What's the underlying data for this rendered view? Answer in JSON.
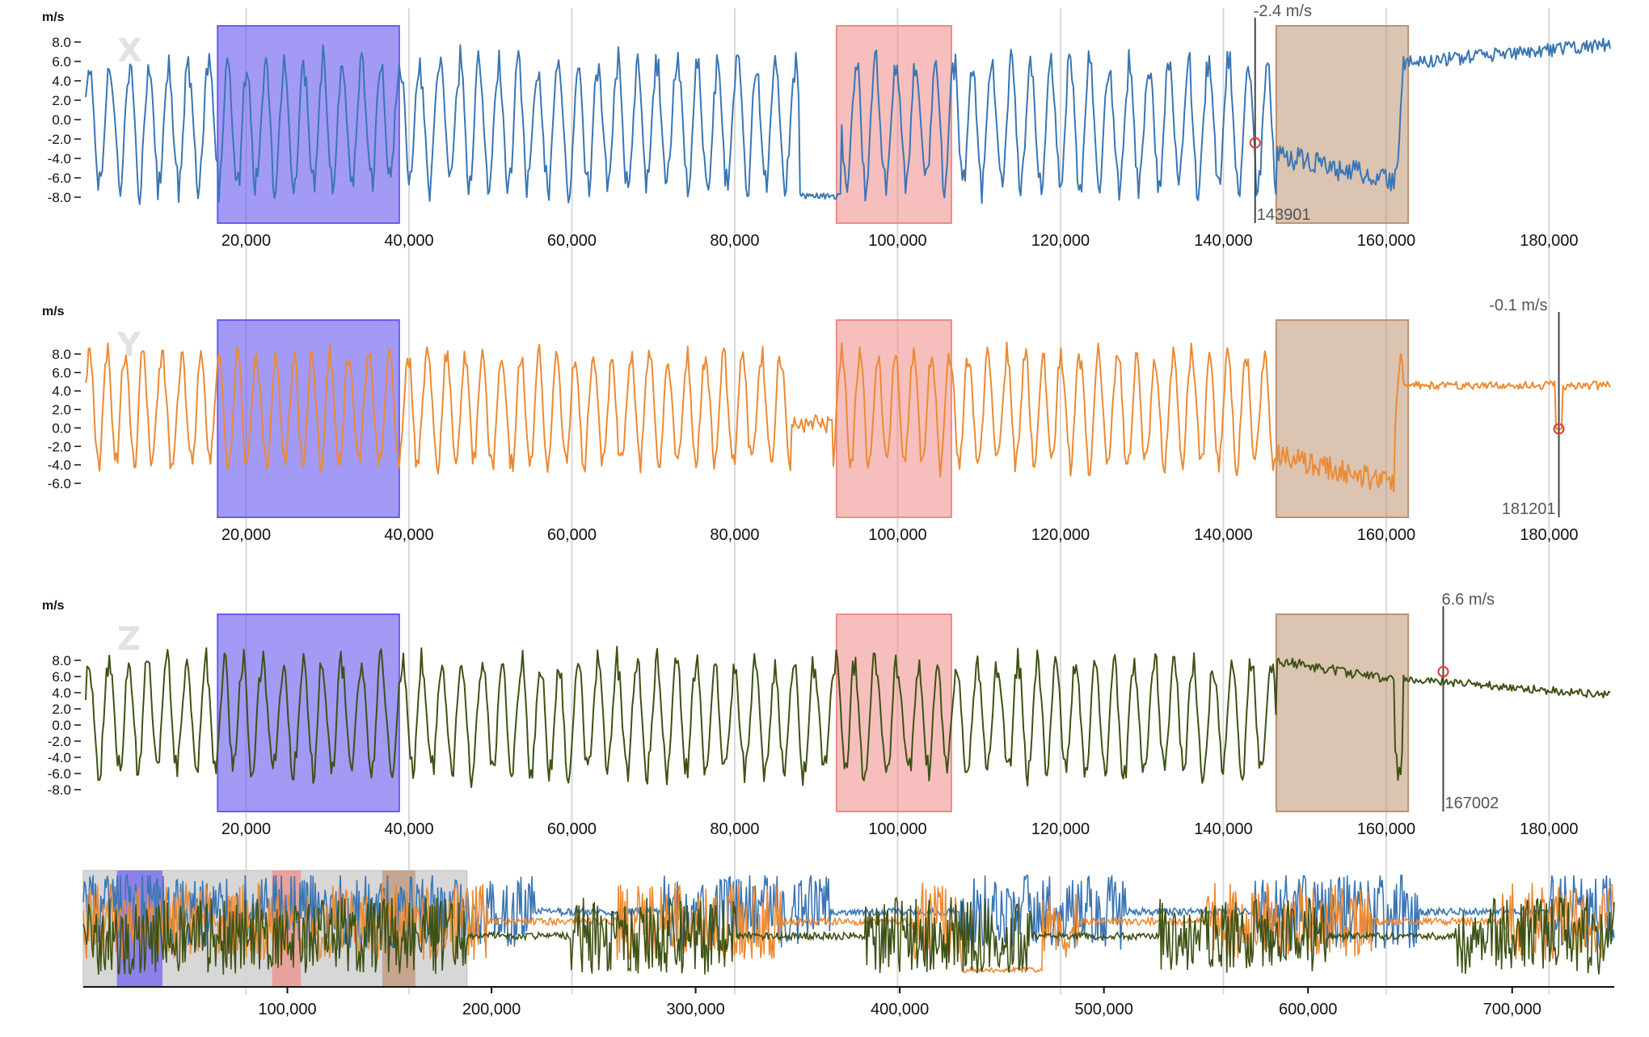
{
  "chart_data": {
    "type": "line",
    "unit_label": "m/s",
    "x_range": [
      0,
      188000
    ],
    "x_ticks": [
      "20,000",
      "40,000",
      "60,000",
      "80,000",
      "100,000",
      "120,000",
      "140,000",
      "160,000",
      "180,000"
    ],
    "x_tick_values": [
      20000,
      40000,
      60000,
      80000,
      100000,
      120000,
      140000,
      160000,
      180000
    ],
    "brush_regions": [
      {
        "name": "region-blue",
        "x0": 16500,
        "x1": 38800,
        "color": "#6b5cf0"
      },
      {
        "name": "region-red",
        "x0": 92500,
        "x1": 106600,
        "color": "#ee8b86"
      },
      {
        "name": "region-tan",
        "x0": 146500,
        "x1": 162700,
        "color": "#bd9373"
      }
    ],
    "panels": [
      {
        "axis": "X",
        "color": "#3a76b4",
        "yticks": [
          "8.0",
          "6.0",
          "4.0",
          "2.0",
          "0.0",
          "-2.0",
          "-4.0",
          "-6.0",
          "-8.0"
        ],
        "y_tick_values": [
          8,
          6,
          4,
          2,
          0,
          -2,
          -4,
          -6,
          -8
        ],
        "ylim": [
          -10.5,
          9.5
        ],
        "cursor": {
          "x": 143901,
          "value": -2.4,
          "value_label": "-2.4 m/s",
          "x_label": "143901"
        }
      },
      {
        "axis": "Y",
        "color": "#ec8a33",
        "yticks": [
          "8.0",
          "6.0",
          "4.0",
          "2.0",
          "0.0",
          "-2.0",
          "-4.0",
          "-6.0"
        ],
        "y_tick_values": [
          8,
          6,
          4,
          2,
          0,
          -2,
          -4,
          -6
        ],
        "ylim": [
          -9.5,
          11.5
        ],
        "cursor": {
          "x": 181201,
          "value": -0.1,
          "value_label": "-0.1 m/s",
          "x_label": "181201"
        }
      },
      {
        "axis": "Z",
        "color": "#3d5214",
        "yticks": [
          "8.0",
          "6.0",
          "4.0",
          "2.0",
          "0.0",
          "-2.0",
          "-4.0",
          "-6.0",
          "-8.0"
        ],
        "y_tick_values": [
          8,
          6,
          4,
          2,
          0,
          -2,
          -4,
          -6,
          -8
        ],
        "ylim": [
          -10.5,
          13.5
        ],
        "cursor": {
          "x": 167002,
          "value": 6.6,
          "value_label": "6.6 m/s",
          "x_label": "167002"
        }
      }
    ],
    "overview": {
      "x_range": [
        0,
        750000
      ],
      "x_ticks": [
        "100,000",
        "200,000",
        "300,000",
        "400,000",
        "500,000",
        "600,000",
        "700,000"
      ],
      "x_tick_values": [
        100000,
        200000,
        300000,
        400000,
        500000,
        600000,
        700000
      ],
      "selection": [
        0,
        188000
      ]
    }
  }
}
